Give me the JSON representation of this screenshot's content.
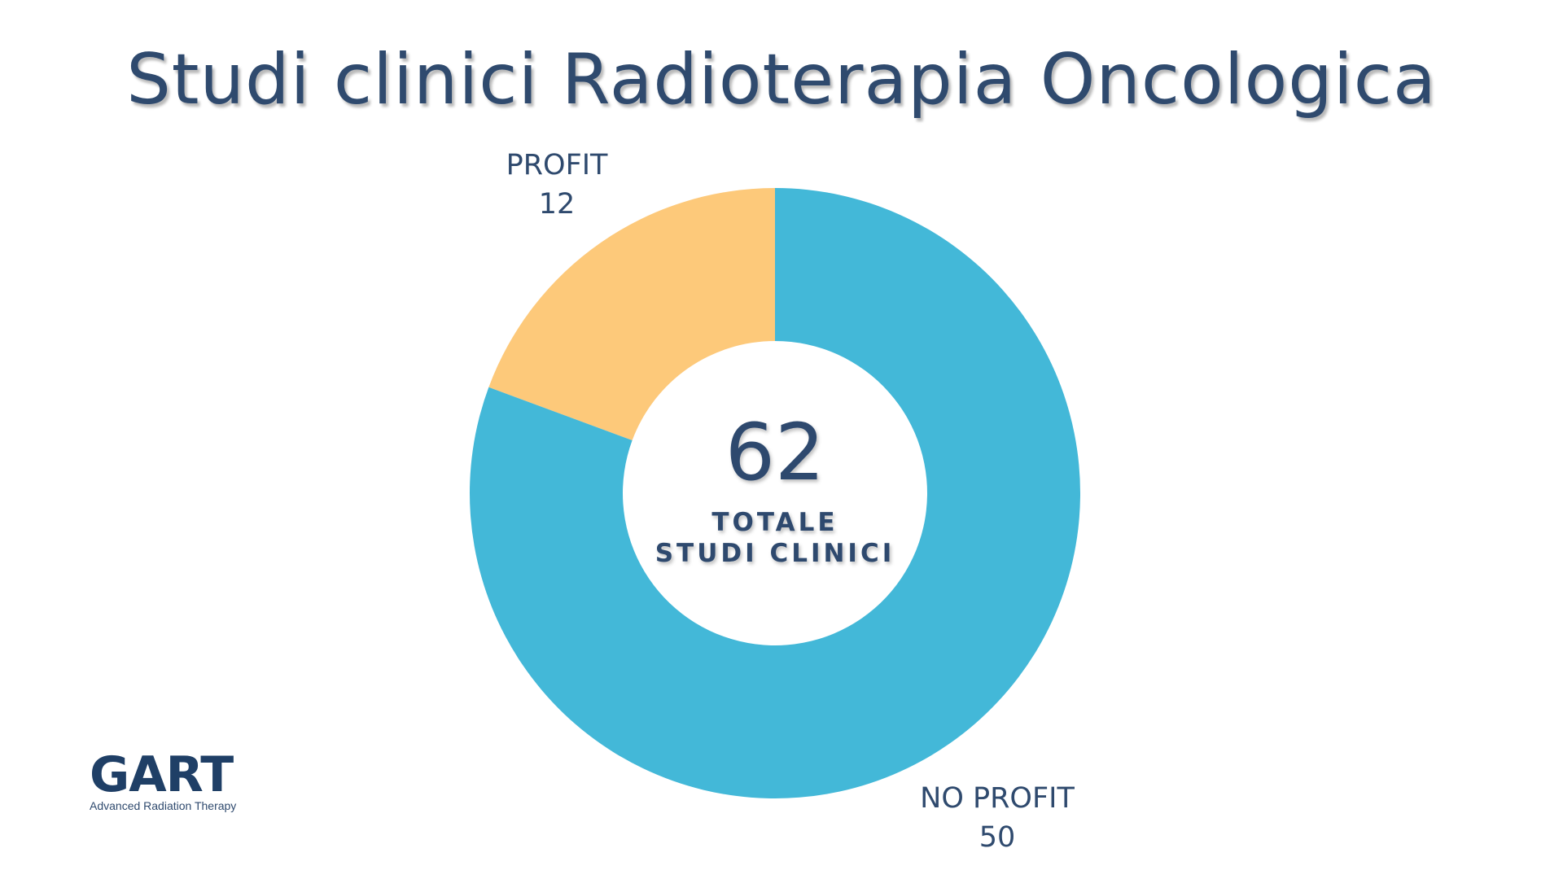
{
  "title": "Studi clinici Radioterapia Oncologica",
  "colors": {
    "text": "#2f4a6e",
    "profit": "#fdc97a",
    "no_profit": "#43b8d8",
    "background": "#ffffff"
  },
  "center": {
    "value": "62",
    "caption_line1": "TOTALE",
    "caption_line2": "STUDI CLINICI"
  },
  "chart_data": {
    "type": "pie",
    "categories": [
      "PROFIT",
      "NO PROFIT"
    ],
    "values": [
      12,
      50
    ],
    "total": 62,
    "donut": true,
    "legend": "none"
  },
  "logo": {
    "text": "GART",
    "subtitle": "Advanced Radiation Therapy"
  }
}
